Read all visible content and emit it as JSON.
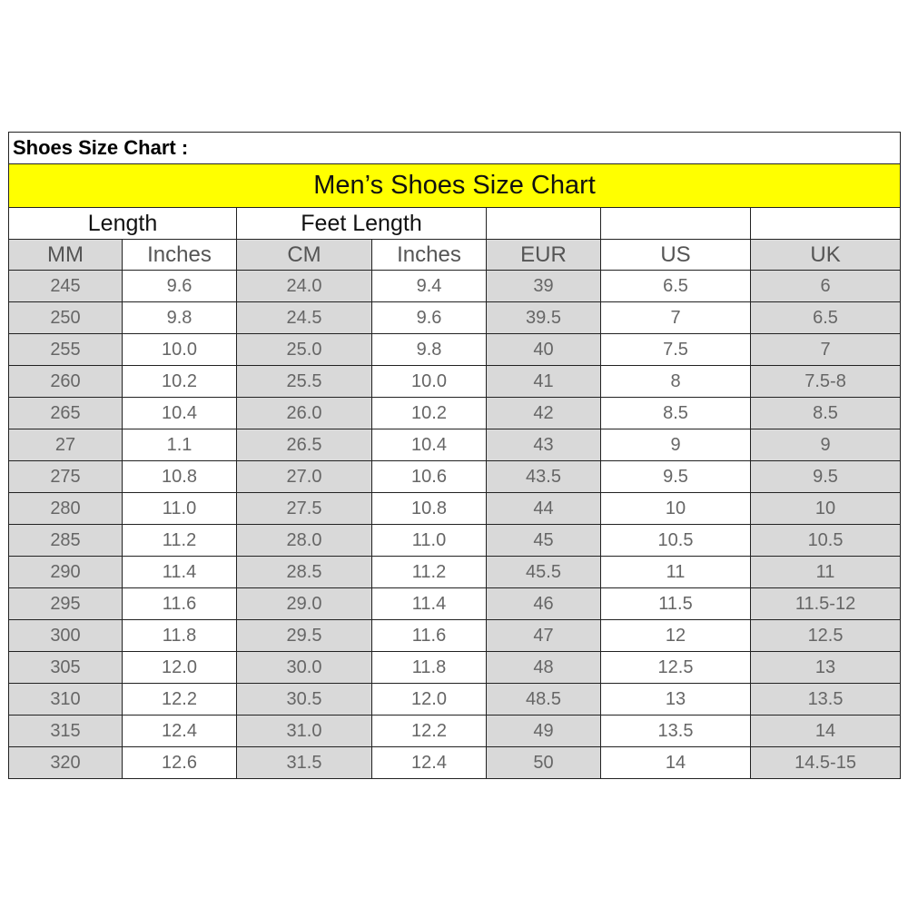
{
  "title": "Shoes Size Chart :",
  "banner": "Men’s Shoes Size Chart",
  "groups": {
    "length": "Length",
    "feet_length": "Feet Length"
  },
  "columns": [
    "MM",
    "Inches",
    "CM",
    "Inches",
    "EUR",
    "US",
    "UK"
  ],
  "colors": {
    "banner": "#ffff00",
    "shaded_column": "#d9d9d9"
  },
  "rows": [
    [
      "245",
      "9.6",
      "24.0",
      "9.4",
      "39",
      "6.5",
      "6"
    ],
    [
      "250",
      "9.8",
      "24.5",
      "9.6",
      "39.5",
      "7",
      "6.5"
    ],
    [
      "255",
      "10.0",
      "25.0",
      "9.8",
      "40",
      "7.5",
      "7"
    ],
    [
      "260",
      "10.2",
      "25.5",
      "10.0",
      "41",
      "8",
      "7.5-8"
    ],
    [
      "265",
      "10.4",
      "26.0",
      "10.2",
      "42",
      "8.5",
      "8.5"
    ],
    [
      "27",
      "1.1",
      "26.5",
      "10.4",
      "43",
      "9",
      "9"
    ],
    [
      "275",
      "10.8",
      "27.0",
      "10.6",
      "43.5",
      "9.5",
      "9.5"
    ],
    [
      "280",
      "11.0",
      "27.5",
      "10.8",
      "44",
      "10",
      "10"
    ],
    [
      "285",
      "11.2",
      "28.0",
      "11.0",
      "45",
      "10.5",
      "10.5"
    ],
    [
      "290",
      "11.4",
      "28.5",
      "11.2",
      "45.5",
      "11",
      "11"
    ],
    [
      "295",
      "11.6",
      "29.0",
      "11.4",
      "46",
      "11.5",
      "11.5-12"
    ],
    [
      "300",
      "11.8",
      "29.5",
      "11.6",
      "47",
      "12",
      "12.5"
    ],
    [
      "305",
      "12.0",
      "30.0",
      "11.8",
      "48",
      "12.5",
      "13"
    ],
    [
      "310",
      "12.2",
      "30.5",
      "12.0",
      "48.5",
      "13",
      "13.5"
    ],
    [
      "315",
      "12.4",
      "31.0",
      "12.2",
      "49",
      "13.5",
      "14"
    ],
    [
      "320",
      "12.6",
      "31.5",
      "12.4",
      "50",
      "14",
      "14.5-15"
    ]
  ]
}
